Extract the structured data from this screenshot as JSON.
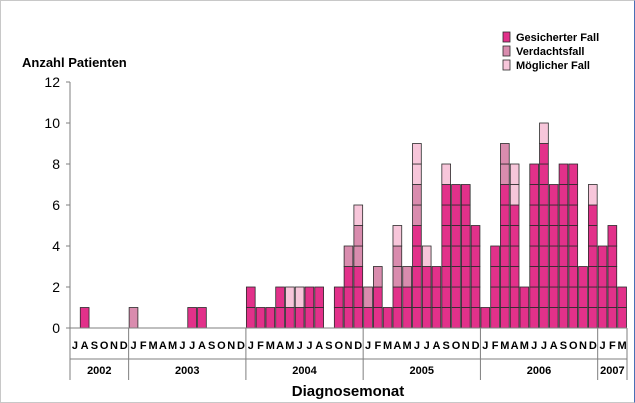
{
  "chart_data": {
    "type": "bar",
    "stacked": true,
    "ylabel": "Anzahl Patienten",
    "xlabel": "Diagnosemonat",
    "ylim": [
      0,
      12
    ],
    "yticks": [
      0,
      2,
      4,
      6,
      8,
      10,
      12
    ],
    "legend_position": "top-right",
    "categories": [
      "J",
      "A",
      "S",
      "O",
      "N",
      "D",
      "J",
      "F",
      "M",
      "A",
      "M",
      "J",
      "J",
      "A",
      "S",
      "O",
      "N",
      "D",
      "J",
      "F",
      "M",
      "A",
      "M",
      "J",
      "J",
      "A",
      "S",
      "O",
      "N",
      "D",
      "J",
      "F",
      "M",
      "A",
      "M",
      "J",
      "J",
      "A",
      "S",
      "O",
      "N",
      "D",
      "J",
      "F",
      "M",
      "A",
      "M",
      "J",
      "J",
      "A",
      "S",
      "O",
      "N",
      "D",
      "J",
      "F",
      "M"
    ],
    "years": [
      {
        "label": "2002",
        "months": 6
      },
      {
        "label": "2003",
        "months": 12
      },
      {
        "label": "2004",
        "months": 12
      },
      {
        "label": "2005",
        "months": 12
      },
      {
        "label": "2006",
        "months": 12
      },
      {
        "label": "2007",
        "months": 3
      }
    ],
    "series": [
      {
        "name": "Gesicherter Fall",
        "color": "#e2318a",
        "values": [
          0,
          1,
          0,
          0,
          0,
          0,
          0,
          0,
          0,
          0,
          0,
          0,
          1,
          1,
          0,
          0,
          0,
          0,
          2,
          1,
          1,
          2,
          1,
          1,
          2,
          2,
          0,
          2,
          3,
          3,
          1,
          2,
          1,
          2,
          2,
          5,
          3,
          3,
          7,
          7,
          7,
          5,
          1,
          4,
          7,
          6,
          2,
          8,
          9,
          7,
          8,
          8,
          3,
          6,
          4,
          5,
          2
        ]
      },
      {
        "name": "Verdachtsfall",
        "color": "#d98cae",
        "values": [
          0,
          0,
          0,
          0,
          0,
          0,
          1,
          0,
          0,
          0,
          0,
          0,
          0,
          0,
          0,
          0,
          0,
          0,
          0,
          0,
          0,
          0,
          0,
          0,
          0,
          0,
          0,
          0,
          1,
          2,
          1,
          1,
          0,
          2,
          1,
          2,
          0,
          0,
          0,
          0,
          0,
          0,
          0,
          0,
          2,
          0,
          0,
          0,
          0,
          0,
          0,
          0,
          0,
          0,
          0,
          0,
          0
        ]
      },
      {
        "name": "Möglicher Fall",
        "color": "#f7c6da",
        "values": [
          0,
          0,
          0,
          0,
          0,
          0,
          0,
          0,
          0,
          0,
          0,
          0,
          0,
          0,
          0,
          0,
          0,
          0,
          0,
          0,
          0,
          0,
          1,
          1,
          0,
          0,
          0,
          0,
          0,
          1,
          0,
          0,
          0,
          1,
          0,
          2,
          1,
          0,
          1,
          0,
          0,
          0,
          0,
          0,
          0,
          2,
          0,
          0,
          1,
          0,
          0,
          0,
          0,
          1,
          0,
          0,
          0
        ]
      }
    ]
  }
}
